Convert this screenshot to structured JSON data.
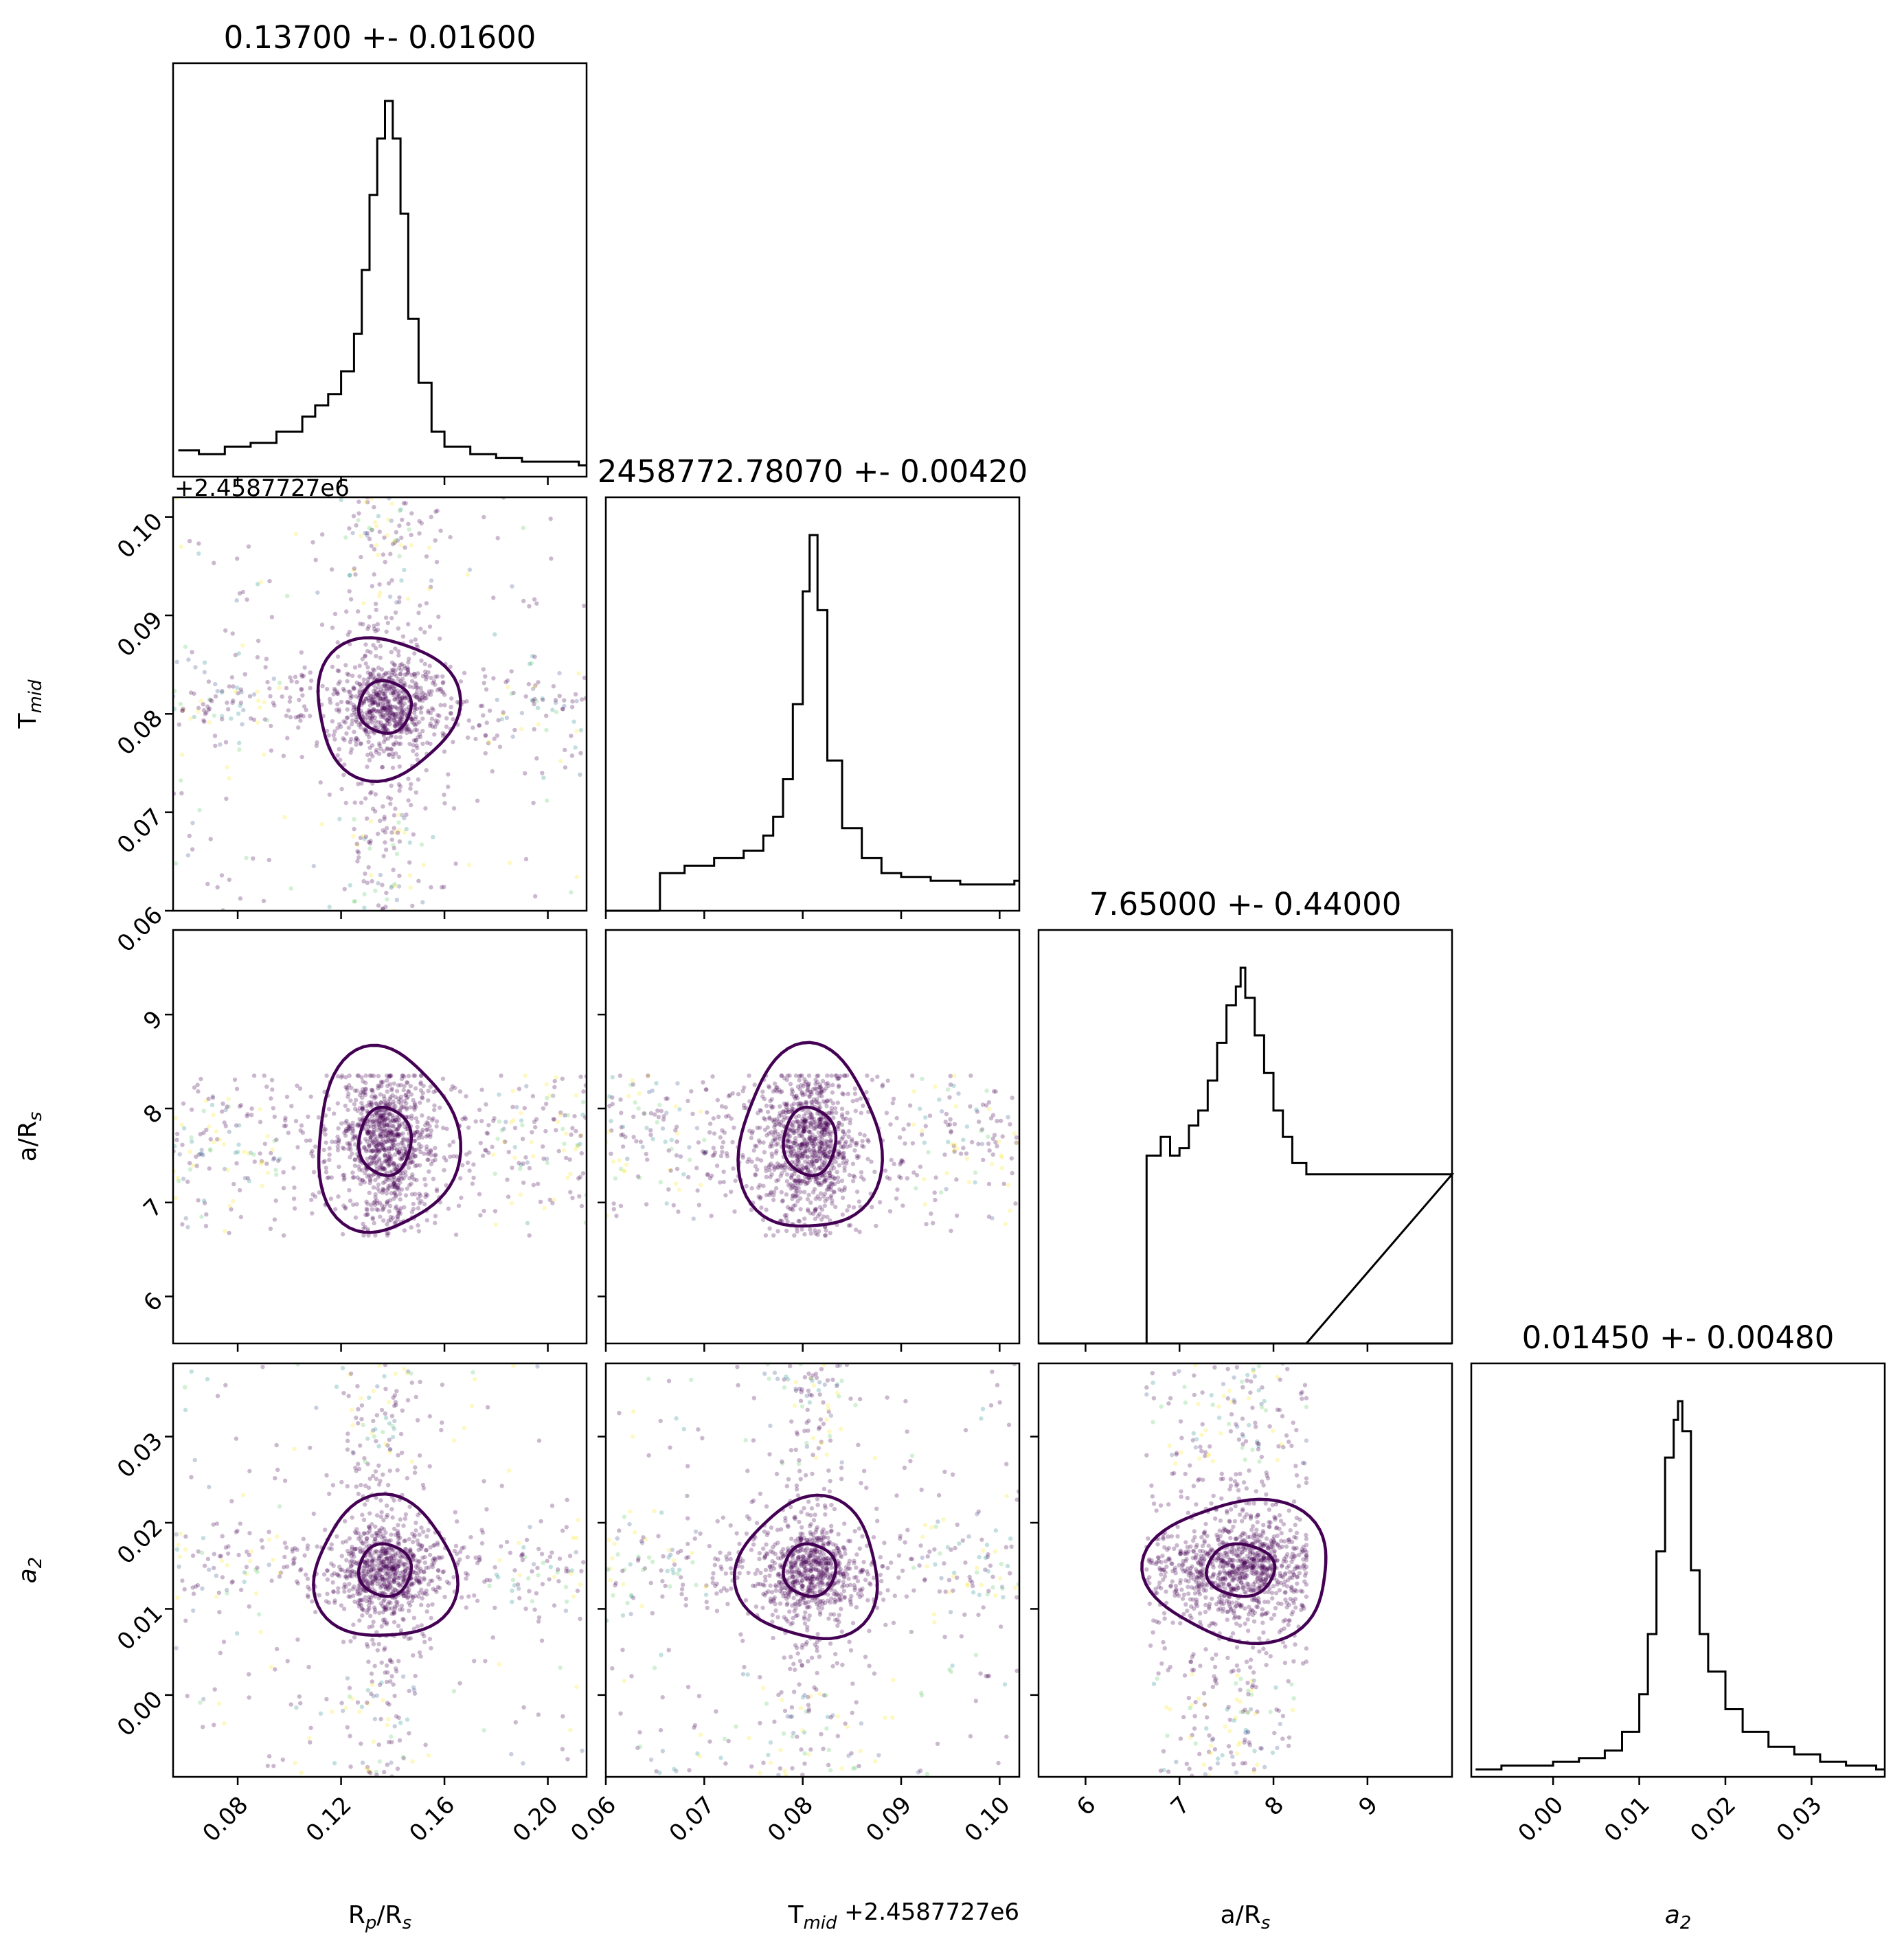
{
  "chart_data": {
    "type": "corner",
    "parameters": [
      {
        "key": "rp",
        "label": "R",
        "label_sub": "p",
        "label_tail": "/R",
        "label_sub2": "s",
        "title": "0.13700 +- 0.01600",
        "range": [
          0.055,
          0.215
        ],
        "ticks": [
          "0.08",
          "0.12",
          "0.16",
          "0.20"
        ],
        "tick_values": [
          0.08,
          0.12,
          0.16,
          0.2
        ],
        "median": 0.137,
        "sigma": 0.016
      },
      {
        "key": "tmid",
        "label": "T",
        "label_sub": "mid",
        "label_tail": "",
        "label_sub2": "",
        "title": "2458772.78070 +- 0.00420",
        "range": [
          0.06,
          0.102
        ],
        "ticks": [
          "0.06",
          "0.07",
          "0.08",
          "0.09",
          "0.10"
        ],
        "tick_values": [
          0.06,
          0.07,
          0.08,
          0.09,
          0.1
        ],
        "offset_text": "+2.4587727e6",
        "median": 0.0807,
        "sigma": 0.0042
      },
      {
        "key": "ars",
        "label": "a/R",
        "label_sub": "s",
        "label_tail": "",
        "label_sub2": "",
        "title": "7.65000 +- 0.44000",
        "range": [
          5.5,
          9.9
        ],
        "ticks": [
          "6",
          "7",
          "8",
          "9"
        ],
        "tick_values": [
          6,
          7,
          8,
          9
        ],
        "median": 7.65,
        "sigma": 0.44,
        "prior_bounds": [
          6.65,
          8.35
        ]
      },
      {
        "key": "a2",
        "label": "a",
        "label_sub": "2",
        "label_tail": "",
        "label_sub2": "",
        "italic": true,
        "title": "0.01450 +- 0.00480",
        "range": [
          -0.0095,
          0.0385
        ],
        "ticks": [
          "0.00",
          "0.01",
          "0.02",
          "0.03"
        ],
        "tick_values": [
          0.0,
          0.01,
          0.02,
          0.03
        ],
        "median": 0.0145,
        "sigma": 0.0048
      }
    ],
    "row_offset_text": "+2.4587727e6",
    "histograms": {
      "rp": {
        "x": [
          0.057,
          0.065,
          0.075,
          0.085,
          0.095,
          0.105,
          0.11,
          0.115,
          0.12,
          0.125,
          0.128,
          0.131,
          0.134,
          0.137,
          0.14,
          0.143,
          0.146,
          0.15,
          0.155,
          0.16,
          0.17,
          0.18,
          0.19,
          0.2,
          0.212
        ],
        "y": [
          0.07,
          0.06,
          0.08,
          0.09,
          0.12,
          0.16,
          0.19,
          0.22,
          0.28,
          0.38,
          0.55,
          0.75,
          0.9,
          1.0,
          0.9,
          0.7,
          0.42,
          0.25,
          0.12,
          0.08,
          0.06,
          0.05,
          0.04,
          0.04,
          0.03
        ]
      },
      "tmid": {
        "x": [
          0.0655,
          0.068,
          0.071,
          0.074,
          0.076,
          0.077,
          0.078,
          0.079,
          0.08,
          0.0807,
          0.0815,
          0.0825,
          0.084,
          0.086,
          0.088,
          0.09,
          0.093,
          0.096,
          0.099,
          0.1015
        ],
        "y": [
          0.1,
          0.12,
          0.14,
          0.16,
          0.2,
          0.25,
          0.35,
          0.55,
          0.85,
          1.0,
          0.8,
          0.4,
          0.22,
          0.14,
          0.1,
          0.09,
          0.08,
          0.07,
          0.07,
          0.08
        ]
      },
      "ars": {
        "x": [
          6.65,
          6.8,
          6.9,
          7.0,
          7.1,
          7.2,
          7.3,
          7.4,
          7.5,
          7.6,
          7.65,
          7.7,
          7.8,
          7.9,
          8.0,
          8.1,
          8.2,
          8.35
        ],
        "y": [
          0.5,
          0.55,
          0.5,
          0.52,
          0.58,
          0.62,
          0.7,
          0.8,
          0.9,
          0.95,
          1.0,
          0.92,
          0.82,
          0.72,
          0.62,
          0.55,
          0.48,
          0.45
        ]
      },
      "a2": {
        "x": [
          -0.009,
          -0.006,
          -0.003,
          0.0,
          0.003,
          0.006,
          0.008,
          0.01,
          0.011,
          0.012,
          0.013,
          0.014,
          0.0145,
          0.015,
          0.016,
          0.017,
          0.018,
          0.02,
          0.022,
          0.025,
          0.028,
          0.031,
          0.034,
          0.0375
        ],
        "y": [
          0.02,
          0.03,
          0.03,
          0.04,
          0.05,
          0.07,
          0.12,
          0.22,
          0.38,
          0.6,
          0.85,
          0.95,
          1.0,
          0.92,
          0.55,
          0.38,
          0.28,
          0.18,
          0.12,
          0.08,
          0.06,
          0.04,
          0.03,
          0.02
        ]
      }
    },
    "contour_levels": [
      "1-sigma",
      "3-sigma"
    ],
    "colors": {
      "points": "#440154",
      "contour": "#440154",
      "hist": "#000000",
      "viridis_low": "#440154",
      "viridis_mid": "#21918c",
      "viridis_high": "#fde725"
    }
  }
}
